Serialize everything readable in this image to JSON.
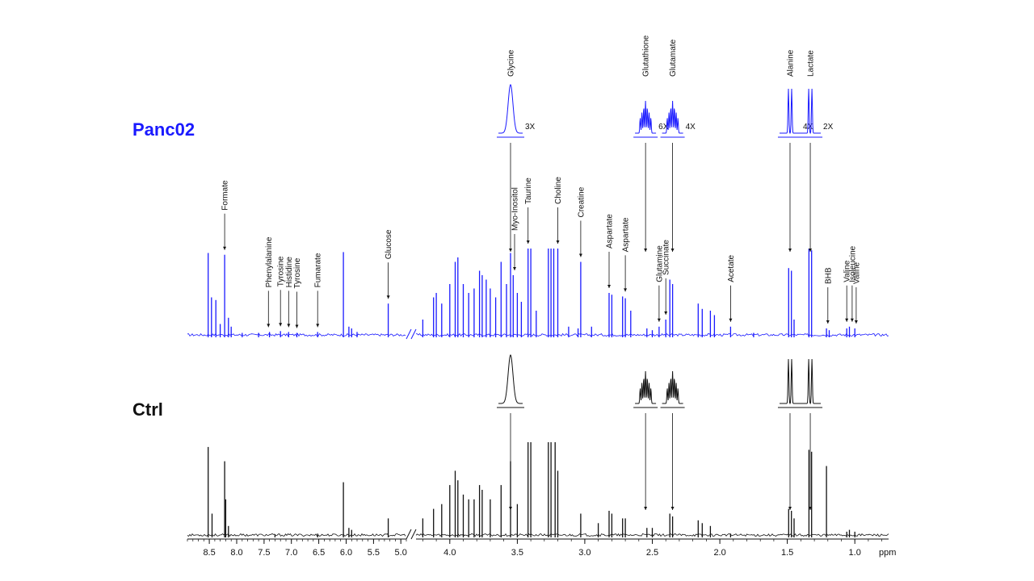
{
  "chart_data": {
    "type": "line",
    "xlabel": "ppm",
    "x_direction": "reversed",
    "axis_break": true,
    "xlim_segments": [
      [
        8.9,
        4.9
      ],
      [
        4.25,
        0.75
      ]
    ],
    "x_ticks": [
      {
        "label": "8.5",
        "value": 8.5
      },
      {
        "label": "8.0",
        "value": 8.0
      },
      {
        "label": "7.5",
        "value": 7.5
      },
      {
        "label": "7.0",
        "value": 7.0
      },
      {
        "label": "6.5",
        "value": 6.5
      },
      {
        "label": "6.0",
        "value": 6.0
      },
      {
        "label": "5.5",
        "value": 5.5
      },
      {
        "label": "5.0",
        "value": 5.0
      },
      {
        "label": "4.0",
        "value": 4.0
      },
      {
        "label": "3.5",
        "value": 3.5
      },
      {
        "label": "3.0",
        "value": 3.0
      },
      {
        "label": "2.5",
        "value": 2.5
      },
      {
        "label": "2.0",
        "value": 2.0
      },
      {
        "label": "1.5",
        "value": 1.5
      },
      {
        "label": "1.0",
        "value": 1.0
      }
    ],
    "series": [
      {
        "name": "Panc02",
        "color": "#1a1aff",
        "peaks": [
          [
            8.52,
            0.95
          ],
          [
            8.46,
            0.45
          ],
          [
            8.38,
            0.42
          ],
          [
            8.3,
            0.15
          ],
          [
            8.22,
            0.93
          ],
          [
            8.15,
            0.22
          ],
          [
            8.1,
            0.12
          ],
          [
            7.9,
            0.05
          ],
          [
            7.6,
            0.05
          ],
          [
            7.4,
            0.06
          ],
          [
            7.2,
            0.07
          ],
          [
            7.05,
            0.06
          ],
          [
            6.9,
            0.05
          ],
          [
            6.52,
            0.06
          ],
          [
            6.05,
            0.96
          ],
          [
            5.95,
            0.12
          ],
          [
            5.9,
            0.1
          ],
          [
            5.8,
            0.06
          ],
          [
            5.23,
            0.38
          ],
          [
            4.2,
            0.2
          ],
          [
            4.12,
            0.45
          ],
          [
            4.1,
            0.5
          ],
          [
            4.06,
            0.38
          ],
          [
            4.0,
            0.6
          ],
          [
            3.96,
            0.85
          ],
          [
            3.94,
            0.9
          ],
          [
            3.9,
            0.6
          ],
          [
            3.86,
            0.5
          ],
          [
            3.82,
            0.55
          ],
          [
            3.78,
            0.75
          ],
          [
            3.76,
            0.7
          ],
          [
            3.73,
            0.65
          ],
          [
            3.7,
            0.55
          ],
          [
            3.66,
            0.45
          ],
          [
            3.62,
            0.85
          ],
          [
            3.58,
            0.6
          ],
          [
            3.55,
            0.95
          ],
          [
            3.53,
            0.7
          ],
          [
            3.5,
            0.5
          ],
          [
            3.47,
            0.4
          ],
          [
            3.42,
            1.0
          ],
          [
            3.4,
            1.0
          ],
          [
            3.36,
            0.3
          ],
          [
            3.27,
            1.0
          ],
          [
            3.25,
            1.0
          ],
          [
            3.23,
            1.0
          ],
          [
            3.2,
            1.0
          ],
          [
            3.12,
            0.12
          ],
          [
            3.05,
            0.1
          ],
          [
            3.03,
            0.85
          ],
          [
            2.95,
            0.12
          ],
          [
            2.82,
            0.5
          ],
          [
            2.8,
            0.48
          ],
          [
            2.72,
            0.46
          ],
          [
            2.7,
            0.44
          ],
          [
            2.66,
            0.3
          ],
          [
            2.54,
            0.1
          ],
          [
            2.5,
            0.08
          ],
          [
            2.45,
            0.12
          ],
          [
            2.4,
            0.2
          ],
          [
            2.37,
            0.65
          ],
          [
            2.35,
            0.6
          ],
          [
            2.16,
            0.38
          ],
          [
            2.13,
            0.32
          ],
          [
            2.07,
            0.3
          ],
          [
            2.04,
            0.25
          ],
          [
            1.92,
            0.12
          ],
          [
            1.75,
            0.05
          ],
          [
            1.49,
            0.78
          ],
          [
            1.47,
            0.75
          ],
          [
            1.45,
            0.2
          ],
          [
            1.34,
            1.0
          ],
          [
            1.32,
            0.98
          ],
          [
            1.21,
            0.1
          ],
          [
            1.19,
            0.08
          ],
          [
            1.06,
            0.1
          ],
          [
            1.04,
            0.12
          ],
          [
            1.0,
            0.1
          ]
        ]
      },
      {
        "name": "Ctrl",
        "color": "#111111",
        "peaks": [
          [
            8.52,
            0.95
          ],
          [
            8.45,
            0.25
          ],
          [
            8.22,
            0.8
          ],
          [
            8.2,
            0.4
          ],
          [
            8.15,
            0.12
          ],
          [
            7.3,
            0.03
          ],
          [
            6.52,
            0.04
          ],
          [
            6.05,
            0.58
          ],
          [
            5.95,
            0.1
          ],
          [
            5.9,
            0.08
          ],
          [
            5.23,
            0.2
          ],
          [
            4.2,
            0.2
          ],
          [
            4.12,
            0.3
          ],
          [
            4.06,
            0.35
          ],
          [
            4.0,
            0.55
          ],
          [
            3.96,
            0.7
          ],
          [
            3.94,
            0.6
          ],
          [
            3.9,
            0.45
          ],
          [
            3.86,
            0.4
          ],
          [
            3.82,
            0.4
          ],
          [
            3.78,
            0.55
          ],
          [
            3.76,
            0.5
          ],
          [
            3.7,
            0.4
          ],
          [
            3.62,
            0.55
          ],
          [
            3.55,
            0.8
          ],
          [
            3.5,
            0.35
          ],
          [
            3.42,
            1.0
          ],
          [
            3.4,
            1.0
          ],
          [
            3.27,
            1.0
          ],
          [
            3.25,
            1.0
          ],
          [
            3.22,
            1.0
          ],
          [
            3.2,
            0.7
          ],
          [
            3.03,
            0.25
          ],
          [
            2.9,
            0.15
          ],
          [
            2.82,
            0.28
          ],
          [
            2.8,
            0.25
          ],
          [
            2.72,
            0.2
          ],
          [
            2.7,
            0.2
          ],
          [
            2.54,
            0.1
          ],
          [
            2.5,
            0.1
          ],
          [
            2.37,
            0.25
          ],
          [
            2.35,
            0.22
          ],
          [
            2.16,
            0.18
          ],
          [
            2.13,
            0.15
          ],
          [
            2.07,
            0.12
          ],
          [
            1.92,
            0.04
          ],
          [
            1.49,
            0.3
          ],
          [
            1.47,
            0.28
          ],
          [
            1.45,
            0.2
          ],
          [
            1.34,
            0.92
          ],
          [
            1.32,
            0.9
          ],
          [
            1.21,
            0.75
          ],
          [
            1.06,
            0.06
          ],
          [
            1.04,
            0.08
          ],
          [
            1.0,
            0.06
          ]
        ]
      }
    ],
    "annotations": [
      {
        "text": "Formate",
        "ppm": 8.22
      },
      {
        "text": "Phenylalanine",
        "ppm": 7.42
      },
      {
        "text": "Tyrosine",
        "ppm": 7.2
      },
      {
        "text": "Histidine",
        "ppm": 7.05
      },
      {
        "text": "Tyrosine",
        "ppm": 6.9
      },
      {
        "text": "Fumarate",
        "ppm": 6.52
      },
      {
        "text": "Glucose",
        "ppm": 5.23
      },
      {
        "text": "Myo-Inositol",
        "ppm": 3.52
      },
      {
        "text": "Taurine",
        "ppm": 3.42
      },
      {
        "text": "Choline",
        "ppm": 3.2
      },
      {
        "text": "Creatine",
        "ppm": 3.03
      },
      {
        "text": "Aspartate",
        "ppm": 2.82
      },
      {
        "text": "Aspartate",
        "ppm": 2.7
      },
      {
        "text": "Glutamine",
        "ppm": 2.45
      },
      {
        "text": "Succinate",
        "ppm": 2.4
      },
      {
        "text": "Acetate",
        "ppm": 1.92
      },
      {
        "text": "BHB",
        "ppm": 1.2
      },
      {
        "text": "Valine",
        "ppm": 1.06
      },
      {
        "text": "Isoleucine",
        "ppm": 1.02
      },
      {
        "text": "Valine",
        "ppm": 0.99
      }
    ],
    "insets": [
      {
        "text": "Glycine",
        "ppm": 3.55,
        "multiplier": "3X",
        "shape": "single"
      },
      {
        "text": "Glutathione",
        "ppm": 2.55,
        "multiplier": "6X",
        "shape": "multiplet"
      },
      {
        "text": "Glutamate",
        "ppm": 2.35,
        "multiplier": "4X",
        "shape": "multiplet"
      },
      {
        "text": "Alanine",
        "ppm": 1.48,
        "multiplier": "4X",
        "shape": "doublet"
      },
      {
        "text": "Lactate",
        "ppm": 1.33,
        "multiplier": "2X",
        "shape": "doublet"
      }
    ]
  }
}
